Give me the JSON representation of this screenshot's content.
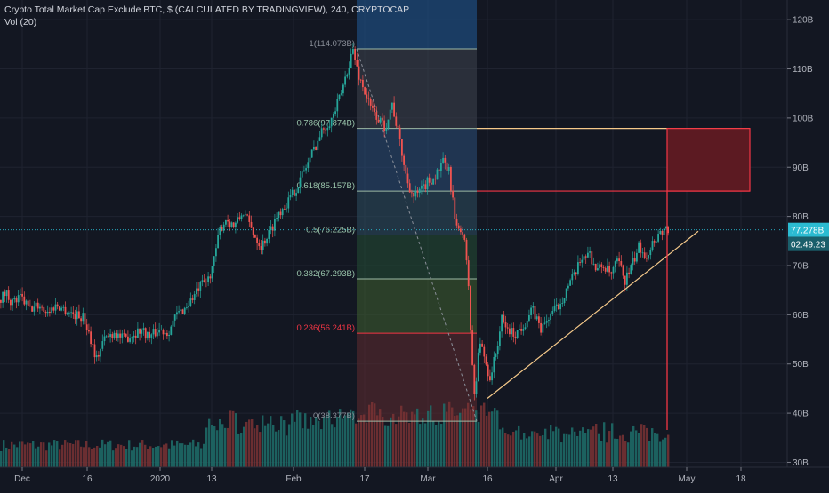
{
  "header": {
    "symbol_line": "Crypto Total Market Cap Exclude BTC, $ (CALCULATED BY TRADINGVIEW), 240, CRYPTOCAP",
    "volume_line": "Vol (20)"
  },
  "colors": {
    "background": "#131722",
    "grid": "#1f2330",
    "up": "#26a69a",
    "down": "#ef5350",
    "fib_lines": "#9db9a5",
    "fib_lines_236": "#f23645",
    "price_line": "#2bbbd1",
    "trendline": "#f5c98a",
    "target_box": "#f23645"
  },
  "chart_data": {
    "type": "candlestick",
    "x_axis": {
      "tick_labels": [
        "Dec",
        "16",
        "2020",
        "13",
        "Feb",
        "17",
        "Mar",
        "16",
        "Apr",
        "13",
        "May",
        "18"
      ]
    },
    "y_axis": {
      "unit": "B",
      "range": [
        29,
        124
      ],
      "tick_labels": [
        "120B",
        "110B",
        "100B",
        "90B",
        "80B",
        "70B",
        "60B",
        "50B",
        "40B",
        "30B"
      ],
      "tick_values": [
        120,
        110,
        100,
        90,
        80,
        70,
        60,
        50,
        40,
        30
      ]
    },
    "last_price": {
      "value": 77.278,
      "label": "77.278B",
      "countdown": "02:49:23"
    },
    "fibonacci": {
      "levels": [
        {
          "ratio": 1,
          "price": 114.073,
          "label": "1(114.073B)"
        },
        {
          "ratio": 0.786,
          "price": 97.874,
          "label": "0.786(97.874B)"
        },
        {
          "ratio": 0.618,
          "price": 85.157,
          "label": "0.618(85.157B)"
        },
        {
          "ratio": 0.5,
          "price": 76.225,
          "label": "0.5(76.225B)"
        },
        {
          "ratio": 0.382,
          "price": 67.293,
          "label": "0.382(67.293B)"
        },
        {
          "ratio": 0.236,
          "price": 56.241,
          "label": "0.236(56.241B)"
        },
        {
          "ratio": 0,
          "price": 38.377,
          "label": "0(38.377B)"
        }
      ]
    },
    "price_path": [
      [
        0,
        63
      ],
      [
        8,
        64.5
      ],
      [
        15,
        62.5
      ],
      [
        25,
        63.5
      ],
      [
        35,
        61
      ],
      [
        45,
        62
      ],
      [
        55,
        60.5
      ],
      [
        65,
        62
      ],
      [
        75,
        61
      ],
      [
        85,
        60
      ],
      [
        95,
        59.5
      ],
      [
        102,
        56
      ],
      [
        110,
        51
      ],
      [
        118,
        55
      ],
      [
        130,
        56.5
      ],
      [
        140,
        55
      ],
      [
        150,
        56
      ],
      [
        160,
        57
      ],
      [
        170,
        55.5
      ],
      [
        180,
        57
      ],
      [
        190,
        56.5
      ],
      [
        200,
        60
      ],
      [
        210,
        61.5
      ],
      [
        220,
        64
      ],
      [
        228,
        66
      ],
      [
        235,
        67
      ],
      [
        242,
        71
      ],
      [
        248,
        77
      ],
      [
        255,
        79.5
      ],
      [
        265,
        78
      ],
      [
        275,
        81
      ],
      [
        285,
        77
      ],
      [
        295,
        74
      ],
      [
        305,
        77
      ],
      [
        315,
        81
      ],
      [
        325,
        83
      ],
      [
        335,
        86
      ],
      [
        345,
        90
      ],
      [
        355,
        94
      ],
      [
        365,
        98
      ],
      [
        375,
        100
      ],
      [
        385,
        105
      ],
      [
        392,
        110
      ],
      [
        398,
        114
      ],
      [
        404,
        109
      ],
      [
        410,
        106
      ],
      [
        418,
        102
      ],
      [
        426,
        100
      ],
      [
        434,
        98
      ],
      [
        442,
        103
      ],
      [
        450,
        96
      ],
      [
        458,
        88
      ],
      [
        466,
        84
      ],
      [
        474,
        85
      ],
      [
        482,
        87
      ],
      [
        490,
        88
      ],
      [
        500,
        91
      ],
      [
        506,
        89
      ],
      [
        510,
        84
      ],
      [
        514,
        77
      ],
      [
        520,
        78
      ],
      [
        524,
        74
      ],
      [
        528,
        66
      ],
      [
        531,
        54
      ],
      [
        535,
        42
      ],
      [
        540,
        55
      ],
      [
        545,
        52
      ],
      [
        552,
        47
      ],
      [
        560,
        53
      ],
      [
        565,
        59
      ],
      [
        572,
        57
      ],
      [
        580,
        56
      ],
      [
        590,
        58
      ],
      [
        600,
        61
      ],
      [
        610,
        57
      ],
      [
        620,
        60
      ],
      [
        630,
        62
      ],
      [
        640,
        66
      ],
      [
        648,
        68
      ],
      [
        656,
        72
      ],
      [
        664,
        72.5
      ],
      [
        672,
        69
      ],
      [
        680,
        70
      ],
      [
        688,
        68
      ],
      [
        696,
        71
      ],
      [
        704,
        67
      ],
      [
        712,
        70
      ],
      [
        720,
        74
      ],
      [
        728,
        72
      ],
      [
        736,
        75
      ],
      [
        742,
        76.5
      ],
      [
        748,
        77.5
      ],
      [
        752,
        77.3
      ]
    ]
  }
}
